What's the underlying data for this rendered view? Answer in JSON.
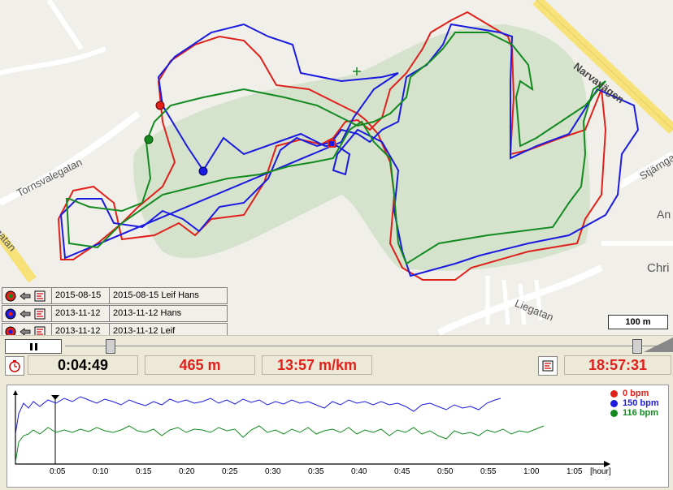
{
  "map": {
    "streets": [
      "Narvavägen",
      "Tornsvalegatan",
      "Liegatan",
      "Stjärnga",
      "An",
      "Chri",
      "gatan"
    ],
    "scale_label": "100 m"
  },
  "tracks": [
    {
      "date": "2015-08-15",
      "name": "2015-08-15 Leif Hans",
      "color": "#e0201a"
    },
    {
      "date": "2013-11-12",
      "name": "2013-11-12 Hans",
      "color": "#1a1ae0"
    },
    {
      "date": "2013-11-12",
      "name": "2013-11-12 Leif",
      "color": "#e0201a"
    }
  ],
  "stats": {
    "elapsed": "0:04:49",
    "distance": "465 m",
    "pace": "13:57 m/km",
    "clock": "18:57:31"
  },
  "heart_rate": {
    "legend": [
      {
        "label": "0 bpm",
        "color": "#e0201a"
      },
      {
        "label": "150 bpm",
        "color": "#1a1ae0"
      },
      {
        "label": "116 bpm",
        "color": "#138a20"
      }
    ],
    "x_ticks": [
      "0:05",
      "0:10",
      "0:15",
      "0:20",
      "0:25",
      "0:30",
      "0:35",
      "0:40",
      "0:45",
      "0:50",
      "0:55",
      "1:00",
      "1:05",
      "[hour]"
    ]
  },
  "colors": {
    "red": "#e0201a",
    "blue": "#1a1ae0",
    "green": "#138a20"
  }
}
